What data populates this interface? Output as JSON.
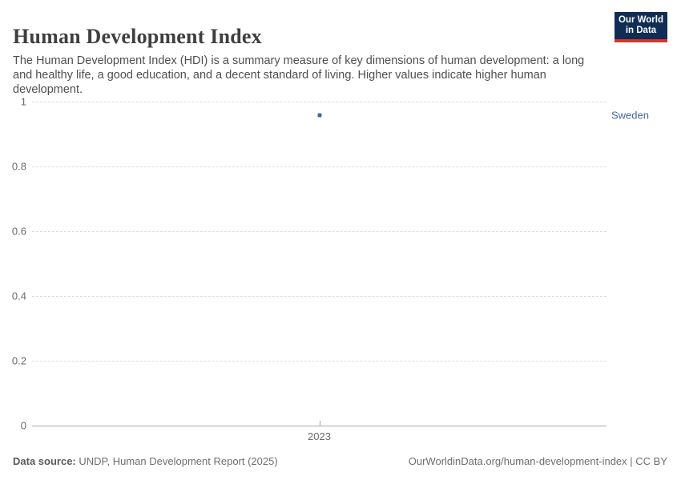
{
  "header": {
    "title": "Human Development Index",
    "subtitle": "The Human Development Index (HDI) is a summary measure of key dimensions of human development: a long and healthy life, a good education, and a decent standard of living. Higher values indicate higher human development.",
    "logo": {
      "line1": "Our World",
      "line2": "in Data",
      "bg_color": "#102d55",
      "bar_color": "#d4362e"
    }
  },
  "chart_data": {
    "type": "scatter",
    "title": "Human Development Index",
    "series": [
      {
        "name": "Sweden",
        "x": [
          2023
        ],
        "y": [
          0.959
        ],
        "color": "#4365a5"
      }
    ],
    "x_ticks": [
      "2023"
    ],
    "y_ticks": [
      0,
      0.2,
      0.4,
      0.6,
      0.8,
      1
    ],
    "ylim": [
      0,
      1
    ],
    "grid": "horizontal-dashed",
    "legend_position": "right-entity-label",
    "entity_label": "Sweden",
    "gridline_color": "#dcdcdc",
    "axis_color": "#a8a8a8",
    "tick_label_color": "#6b6b6b"
  },
  "footer": {
    "source_label": "Data source:",
    "source_text": " UNDP, Human Development Report (2025)",
    "link_text": "OurWorldinData.org/human-development-index | CC BY"
  }
}
